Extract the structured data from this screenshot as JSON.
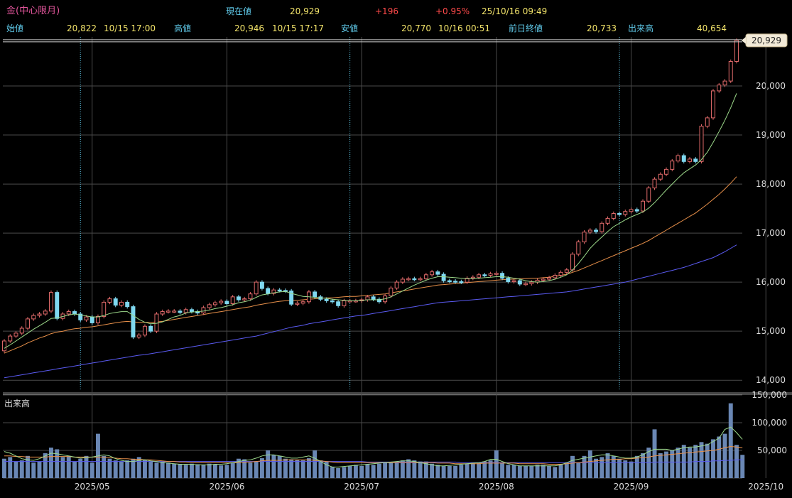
{
  "header": {
    "symbol": "金(中心限月)",
    "current_label": "現在値",
    "current_value": "20,929",
    "change": "+196",
    "change_pct": "+0.95%",
    "datetime": "25/10/16  09:49",
    "open_label": "始値",
    "open_value": "20,822",
    "open_time": "10/15  17:00",
    "high_label": "高値",
    "high_value": "20,946",
    "high_time": "10/15  17:17",
    "low_label": "安値",
    "low_value": "20,770",
    "low_time": "10/16  00:51",
    "prev_close_label": "前日終値",
    "prev_close_value": "20,733",
    "volume_label": "出来高",
    "volume_value": "40,654"
  },
  "colors": {
    "up": "#e06a6a",
    "down": "#7fd8f0",
    "ma_short": "#9cd98a",
    "ma_mid": "#e8904a",
    "ma_long": "#5a5af0",
    "volume_bar": "#6a87b4",
    "grid": "#4a4a4a"
  },
  "chart_data": [
    {
      "type": "candlestick",
      "title": "",
      "price_label": "20,929",
      "ylim": [
        13800,
        21000
      ],
      "y_ticks": [
        "14,000",
        "15,000",
        "16,000",
        "17,000",
        "18,000",
        "19,000",
        "20,000"
      ],
      "y_tick_values": [
        14000,
        15000,
        16000,
        17000,
        18000,
        19000,
        20000
      ],
      "x_ticks": [
        "2025/05",
        "2025/06",
        "2025/07",
        "2025/08",
        "2025/09",
        "2025/10"
      ],
      "x_tick_index": [
        15,
        38,
        61,
        84,
        107,
        130
      ],
      "contract_roll_index": [
        13,
        59,
        105
      ],
      "closes": [
        14800,
        14900,
        14960,
        15060,
        15250,
        15320,
        15350,
        15410,
        15790,
        15260,
        15350,
        15400,
        15350,
        15230,
        15290,
        15170,
        15300,
        15590,
        15660,
        15530,
        15590,
        15500,
        14880,
        14920,
        15100,
        15000,
        15350,
        15400,
        15410,
        15410,
        15380,
        15440,
        15400,
        15370,
        15480,
        15540,
        15580,
        15610,
        15560,
        15700,
        15640,
        15660,
        15760,
        16000,
        15870,
        15770,
        15840,
        15830,
        15820,
        15550,
        15570,
        15600,
        15800,
        15700,
        15650,
        15620,
        15600,
        15520,
        15620,
        15620,
        15620,
        15640,
        15700,
        15650,
        15600,
        15720,
        15880,
        16000,
        16060,
        16070,
        16060,
        16070,
        16150,
        16210,
        16160,
        16030,
        16020,
        16010,
        16000,
        16080,
        16100,
        16150,
        16140,
        16170,
        16180,
        16080,
        16010,
        16030,
        15960,
        15970,
        16000,
        16040,
        16060,
        16090,
        16140,
        16200,
        16250,
        16570,
        16820,
        17020,
        17060,
        17030,
        17200,
        17300,
        17400,
        17380,
        17440,
        17480,
        17450,
        17650,
        17920,
        18100,
        18200,
        18300,
        18470,
        18580,
        18460,
        18510,
        18460,
        19180,
        19350,
        19900,
        20020,
        20100,
        20500,
        20930
      ],
      "opens": [
        14600,
        14800,
        14900,
        14960,
        15060,
        15250,
        15320,
        15350,
        15410,
        15790,
        15260,
        15350,
        15400,
        15350,
        15230,
        15290,
        15170,
        15300,
        15590,
        15660,
        15530,
        15590,
        15500,
        14880,
        14920,
        15100,
        15000,
        15350,
        15400,
        15410,
        15410,
        15380,
        15440,
        15400,
        15370,
        15480,
        15540,
        15580,
        15610,
        15560,
        15700,
        15640,
        15660,
        15760,
        16000,
        15870,
        15770,
        15840,
        15830,
        15820,
        15550,
        15570,
        15600,
        15800,
        15700,
        15650,
        15620,
        15600,
        15520,
        15620,
        15620,
        15620,
        15640,
        15700,
        15650,
        15600,
        15720,
        15880,
        16000,
        16060,
        16070,
        16060,
        16070,
        16150,
        16210,
        16160,
        16030,
        16020,
        16010,
        16000,
        16080,
        16100,
        16150,
        16140,
        16170,
        16180,
        16080,
        16010,
        16030,
        15960,
        15970,
        16000,
        16040,
        16060,
        16090,
        16140,
        16200,
        16250,
        16570,
        16820,
        17020,
        17060,
        17030,
        17200,
        17300,
        17400,
        17380,
        17440,
        17480,
        17450,
        17650,
        17920,
        18100,
        18200,
        18300,
        18470,
        18580,
        18460,
        18510,
        18460,
        19180,
        19350,
        19900,
        20020,
        20100,
        20500
      ],
      "ma_short": [
        14650,
        14720,
        14800,
        14880,
        14960,
        15040,
        15110,
        15180,
        15260,
        15270,
        15300,
        15330,
        15350,
        15330,
        15310,
        15290,
        15290,
        15320,
        15360,
        15380,
        15400,
        15400,
        15320,
        15240,
        15180,
        15150,
        15160,
        15190,
        15240,
        15290,
        15320,
        15370,
        15390,
        15400,
        15410,
        15430,
        15460,
        15480,
        15510,
        15540,
        15580,
        15600,
        15630,
        15690,
        15740,
        15760,
        15780,
        15800,
        15810,
        15770,
        15740,
        15710,
        15700,
        15690,
        15680,
        15670,
        15650,
        15640,
        15630,
        15620,
        15620,
        15630,
        15640,
        15640,
        15640,
        15660,
        15700,
        15760,
        15820,
        15880,
        15940,
        15990,
        16040,
        16080,
        16110,
        16110,
        16100,
        16090,
        16080,
        16070,
        16070,
        16080,
        16090,
        16100,
        16110,
        16110,
        16100,
        16080,
        16060,
        16030,
        16010,
        16000,
        16010,
        16030,
        16060,
        16100,
        16150,
        16250,
        16380,
        16530,
        16690,
        16810,
        16920,
        17030,
        17130,
        17200,
        17270,
        17330,
        17380,
        17430,
        17510,
        17620,
        17750,
        17880,
        18000,
        18120,
        18230,
        18310,
        18390,
        18500,
        18650,
        18850,
        19070,
        19300,
        19560,
        19850
      ],
      "ma_mid": [
        14550,
        14600,
        14650,
        14700,
        14760,
        14810,
        14860,
        14900,
        14950,
        14980,
        15000,
        15030,
        15050,
        15060,
        15080,
        15090,
        15110,
        15130,
        15150,
        15170,
        15190,
        15200,
        15190,
        15180,
        15180,
        15180,
        15190,
        15200,
        15220,
        15240,
        15260,
        15280,
        15300,
        15320,
        15340,
        15360,
        15380,
        15400,
        15420,
        15440,
        15460,
        15480,
        15500,
        15530,
        15550,
        15570,
        15590,
        15610,
        15620,
        15630,
        15630,
        15640,
        15650,
        15660,
        15670,
        15680,
        15680,
        15690,
        15700,
        15710,
        15710,
        15720,
        15730,
        15740,
        15750,
        15760,
        15780,
        15800,
        15820,
        15840,
        15860,
        15880,
        15900,
        15920,
        15940,
        15950,
        15960,
        15970,
        15980,
        15990,
        16000,
        16010,
        16020,
        16030,
        16040,
        16050,
        16060,
        16060,
        16070,
        16070,
        16080,
        16080,
        16090,
        16100,
        16120,
        16140,
        16160,
        16200,
        16240,
        16290,
        16340,
        16390,
        16440,
        16490,
        16540,
        16590,
        16640,
        16690,
        16740,
        16790,
        16850,
        16920,
        16990,
        17060,
        17130,
        17200,
        17270,
        17340,
        17410,
        17500,
        17590,
        17690,
        17790,
        17900,
        18020,
        18150
      ],
      "ma_long": [
        14050,
        14070,
        14090,
        14110,
        14130,
        14150,
        14170,
        14190,
        14210,
        14230,
        14250,
        14270,
        14290,
        14310,
        14330,
        14350,
        14370,
        14390,
        14410,
        14430,
        14450,
        14470,
        14490,
        14510,
        14520,
        14540,
        14560,
        14580,
        14600,
        14620,
        14640,
        14660,
        14680,
        14700,
        14720,
        14740,
        14760,
        14780,
        14800,
        14820,
        14840,
        14860,
        14880,
        14900,
        14930,
        14960,
        14990,
        15020,
        15050,
        15080,
        15100,
        15120,
        15150,
        15170,
        15190,
        15210,
        15230,
        15250,
        15270,
        15290,
        15310,
        15320,
        15340,
        15360,
        15380,
        15400,
        15420,
        15440,
        15460,
        15480,
        15500,
        15520,
        15540,
        15560,
        15580,
        15590,
        15600,
        15610,
        15620,
        15630,
        15640,
        15650,
        15660,
        15670,
        15680,
        15690,
        15700,
        15710,
        15720,
        15730,
        15740,
        15750,
        15760,
        15770,
        15780,
        15790,
        15800,
        15820,
        15840,
        15860,
        15880,
        15900,
        15920,
        15940,
        15960,
        15980,
        16000,
        16030,
        16060,
        16090,
        16120,
        16150,
        16180,
        16210,
        16240,
        16270,
        16300,
        16340,
        16380,
        16420,
        16460,
        16500,
        16560,
        16620,
        16690,
        16760
      ]
    },
    {
      "type": "bar",
      "title": "出来高",
      "ylim": [
        0,
        150000
      ],
      "y_ticks": [
        "50,000",
        "100,000",
        "150,000"
      ],
      "y_tick_values": [
        50000,
        100000,
        150000
      ],
      "values": [
        35000,
        38000,
        30000,
        32000,
        40000,
        28000,
        30000,
        45000,
        55000,
        52000,
        38000,
        40000,
        30000,
        35000,
        40000,
        28000,
        80000,
        40000,
        35000,
        32000,
        30000,
        32000,
        35000,
        38000,
        33000,
        30000,
        28000,
        30000,
        28000,
        26000,
        25000,
        24000,
        26000,
        25000,
        24000,
        26000,
        25000,
        23000,
        24000,
        28000,
        35000,
        34000,
        28000,
        30000,
        36000,
        50000,
        42000,
        40000,
        35000,
        34000,
        33000,
        32000,
        36000,
        50000,
        32000,
        30000,
        20000,
        18000,
        20000,
        22000,
        24000,
        22000,
        25000,
        24000,
        26000,
        28000,
        28000,
        30000,
        32000,
        34000,
        32000,
        30000,
        30000,
        26000,
        24000,
        22000,
        22000,
        22000,
        24000,
        26000,
        28000,
        28000,
        30000,
        32000,
        50000,
        28000,
        24000,
        24000,
        22000,
        22000,
        22000,
        24000,
        24000,
        22000,
        20000,
        24000,
        28000,
        40000,
        28000,
        40000,
        50000,
        35000,
        38000,
        45000,
        40000,
        35000,
        32000,
        30000,
        40000,
        45000,
        55000,
        88000,
        45000,
        48000,
        50000,
        55000,
        60000,
        55000,
        60000,
        65000,
        62000,
        70000,
        75000,
        80000,
        135000,
        60000,
        42000
      ],
      "ma_short": [
        48000,
        45000,
        40000,
        35000,
        33000,
        32000,
        35000,
        40000,
        45000,
        44000,
        42000,
        40000,
        38000,
        36000,
        37000,
        38000,
        40000,
        42000,
        40000,
        35000,
        32000,
        30000,
        30000,
        32000,
        33000,
        31000,
        30000,
        28000,
        27000,
        26000,
        25000,
        25000,
        25000,
        24000,
        24000,
        24000,
        25000,
        25000,
        26000,
        28000,
        30000,
        32000,
        33000,
        36000,
        40000,
        42000,
        42000,
        40000,
        38000,
        36000,
        36000,
        38000,
        40000,
        36000,
        30000,
        24000,
        20000,
        20000,
        21000,
        22000,
        23000,
        24000,
        25000,
        26000,
        27000,
        28000,
        29000,
        30000,
        31000,
        31000,
        30000,
        28000,
        26000,
        24000,
        22000,
        22000,
        23000,
        24000,
        25000,
        26000,
        27000,
        28000,
        30000,
        34000,
        34000,
        30000,
        26000,
        24000,
        22000,
        22000,
        22000,
        22000,
        22000,
        22000,
        22000,
        24000,
        28000,
        32000,
        34000,
        36000,
        38000,
        40000,
        42000,
        42000,
        40000,
        38000,
        36000,
        36000,
        38000,
        42000,
        48000,
        52000,
        52000,
        52000,
        50000,
        52000,
        55000,
        56000,
        56000,
        58000,
        60000,
        66000,
        72000,
        88000,
        92000,
        82000,
        70000
      ],
      "ma_mid": [
        40000,
        40000,
        39000,
        39000,
        38000,
        38000,
        38000,
        38000,
        39000,
        39000,
        39000,
        39000,
        38000,
        38000,
        38000,
        38000,
        38000,
        38000,
        37000,
        36000,
        35000,
        35000,
        34000,
        34000,
        33000,
        33000,
        32000,
        31000,
        30000,
        30000,
        29000,
        29000,
        28000,
        28000,
        28000,
        28000,
        28000,
        28000,
        28000,
        28000,
        28000,
        29000,
        29000,
        30000,
        31000,
        32000,
        32000,
        32000,
        33000,
        33000,
        33000,
        33000,
        33000,
        32000,
        31000,
        30000,
        29000,
        28000,
        28000,
        28000,
        28000,
        28000,
        28000,
        28000,
        28000,
        28000,
        28000,
        28000,
        28000,
        28000,
        28000,
        28000,
        28000,
        28000,
        27000,
        27000,
        27000,
        26000,
        26000,
        26000,
        26000,
        26000,
        27000,
        27000,
        27000,
        27000,
        27000,
        27000,
        26000,
        26000,
        26000,
        26000,
        26000,
        25000,
        25000,
        25000,
        26000,
        27000,
        28000,
        29000,
        30000,
        31000,
        32000,
        33000,
        34000,
        34000,
        35000,
        35000,
        36000,
        37000,
        38000,
        40000,
        41000,
        42000,
        43000,
        44000,
        45000,
        46000,
        47000,
        48000,
        49000,
        50000,
        52000,
        55000,
        57000,
        56000,
        55000
      ],
      "ma_long": [
        30000,
        30000,
        30000,
        30000,
        30000,
        30000,
        30000,
        30000,
        30000,
        30000,
        30000,
        30000,
        30000,
        30000,
        30000,
        30000,
        30000,
        30000,
        30000,
        30000,
        30000,
        30000,
        30000,
        30000,
        30000,
        30000,
        30000,
        30000,
        30000,
        30000,
        30000,
        30000,
        30000,
        30000,
        30000,
        30000,
        30000,
        30000,
        30000,
        30000,
        30000,
        30000,
        30000,
        30000,
        30000,
        30000,
        30000,
        30000,
        30000,
        30000,
        30000,
        30000,
        30000,
        30000,
        30000,
        30000,
        30000,
        30000,
        30000,
        30000,
        30000,
        30000,
        29000,
        29000,
        29000,
        29000,
        29000,
        29000,
        29000,
        29000,
        29000,
        29000,
        29000,
        29000,
        29000,
        29000,
        29000,
        29000,
        28000,
        28000,
        28000,
        28000,
        28000,
        28000,
        28000,
        28000,
        28000,
        28000,
        28000,
        28000,
        28000,
        28000,
        28000,
        28000,
        28000,
        28000,
        28000,
        28000,
        28000,
        28000,
        28000,
        28000,
        28000,
        28000,
        28000,
        28000,
        28000,
        28000,
        28000,
        28000,
        28000,
        29000,
        29000,
        29000,
        29000,
        29000,
        29000,
        29000,
        30000,
        30000,
        30000,
        31000,
        31000,
        32000,
        32000,
        33000,
        33000
      ]
    }
  ]
}
